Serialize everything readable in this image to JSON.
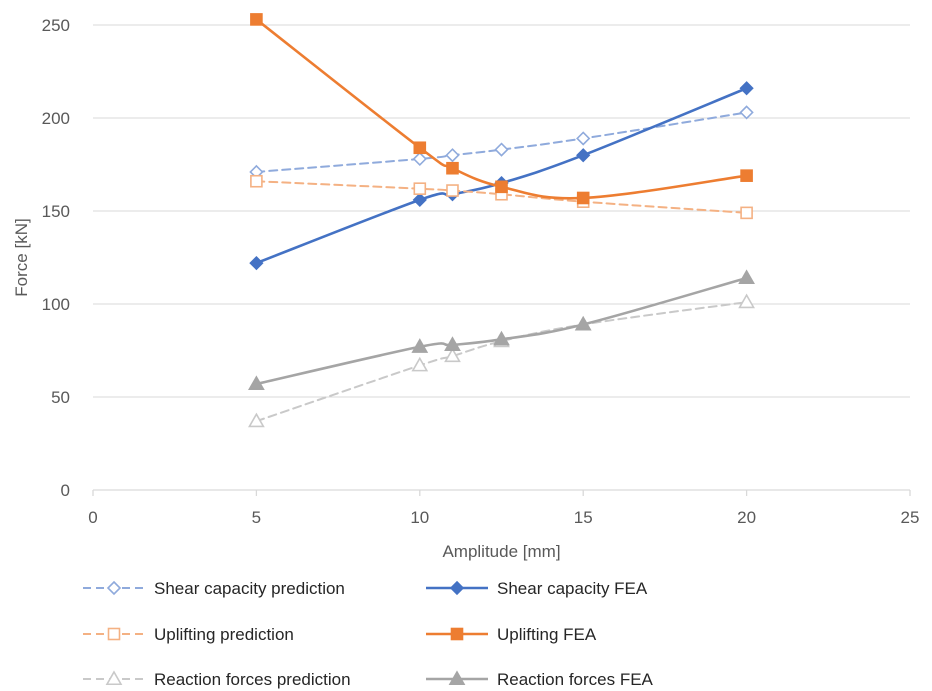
{
  "chart_data": {
    "type": "line",
    "title": "",
    "xlabel": "Amplitude [mm]",
    "ylabel": "Force [kN]",
    "xlim": [
      0,
      25
    ],
    "ylim": [
      0,
      250
    ],
    "xticks": [
      0,
      5,
      10,
      15,
      20,
      25
    ],
    "yticks": [
      0,
      50,
      100,
      150,
      200,
      250
    ],
    "grid": "horizontal",
    "legend_position": "bottom",
    "x": [
      5,
      10,
      11,
      12.5,
      15,
      20
    ],
    "series": [
      {
        "name": "Shear capacity prediction",
        "y": [
          171,
          178,
          180,
          183,
          189,
          203
        ],
        "color": "#8FAADC",
        "line_style": "dashed",
        "marker": "diamond-open"
      },
      {
        "name": "Shear capacity FEA",
        "y": [
          122,
          156,
          159,
          165,
          180,
          216
        ],
        "color": "#4472C4",
        "line_style": "solid",
        "marker": "diamond-filled"
      },
      {
        "name": "Uplifting prediction",
        "y": [
          166,
          162,
          161,
          159,
          155,
          149
        ],
        "color": "#F4B183",
        "line_style": "dashed",
        "marker": "square-open"
      },
      {
        "name": "Uplifting FEA",
        "y": [
          253,
          184,
          173,
          163,
          157,
          169
        ],
        "color": "#ED7D31",
        "line_style": "solid",
        "marker": "square-filled"
      },
      {
        "name": "Reaction forces prediction",
        "y": [
          37,
          67,
          72,
          80,
          89,
          101
        ],
        "color": "#C9C9C9",
        "line_style": "dashed",
        "marker": "triangle-open"
      },
      {
        "name": "Reaction forces FEA",
        "y": [
          57,
          77,
          78,
          81,
          89,
          114
        ],
        "color": "#A5A5A5",
        "line_style": "solid",
        "marker": "triangle-filled"
      }
    ]
  }
}
